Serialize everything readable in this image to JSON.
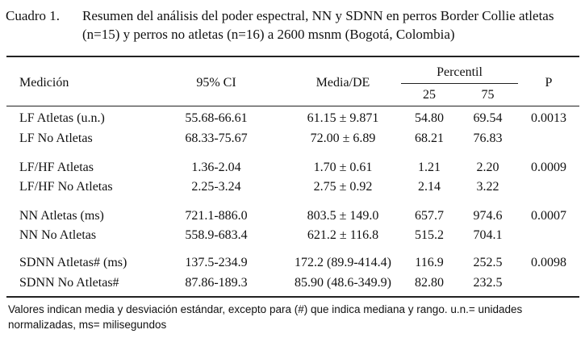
{
  "caption": {
    "label": "Cuadro 1.",
    "text": "Resumen del análisis del poder espectral, NN y SDNN en perros Border Collie atletas (n=15) y perros no atletas (n=16) a 2600 msnm (Bogotá, Colombia)"
  },
  "headers": {
    "medicion": "Medición",
    "ci": "95% CI",
    "media": "Media/DE",
    "percentil": "Percentil",
    "p25": "25",
    "p75": "75",
    "p": "P"
  },
  "rows": [
    {
      "medicion": "LF Atletas (u.n.)",
      "ci": "55.68-66.61",
      "media": "61.15 ± 9.871",
      "p25": "54.80",
      "p75": "69.54",
      "p": "0.0013"
    },
    {
      "medicion": "LF No Atletas",
      "ci": "68.33-75.67",
      "media": "72.00 ± 6.89",
      "p25": "68.21",
      "p75": "76.83",
      "p": ""
    },
    {
      "medicion": "LF/HF Atletas",
      "ci": "1.36-2.04",
      "media": "1.70 ± 0.61",
      "p25": "1.21",
      "p75": "2.20",
      "p": "0.0009"
    },
    {
      "medicion": "LF/HF No Atletas",
      "ci": "2.25-3.24",
      "media": "2.75 ± 0.92",
      "p25": "2.14",
      "p75": "3.22",
      "p": ""
    },
    {
      "medicion": "NN Atletas (ms)",
      "ci": "721.1-886.0",
      "media": "803.5 ± 149.0",
      "p25": "657.7",
      "p75": "974.6",
      "p": "0.0007"
    },
    {
      "medicion": "NN No Atletas",
      "ci": "558.9-683.4",
      "media": "621.2 ± 116.8",
      "p25": "515.2",
      "p75": "704.1",
      "p": ""
    },
    {
      "medicion": "SDNN Atletas# (ms)",
      "ci": "137.5-234.9",
      "media": "172.2 (89.9-414.4)",
      "p25": "116.9",
      "p75": "252.5",
      "p": "0.0098"
    },
    {
      "medicion": "SDNN No Atletas#",
      "ci": "87.86-189.3",
      "media": "85.90 (48.6-349.9)",
      "p25": "82.80",
      "p75": "232.5",
      "p": ""
    }
  ],
  "footnote": "Valores indican media y desviación estándar, excepto para (#) que indica mediana y rango. u.n.= unidades normalizadas, ms= milisegundos"
}
